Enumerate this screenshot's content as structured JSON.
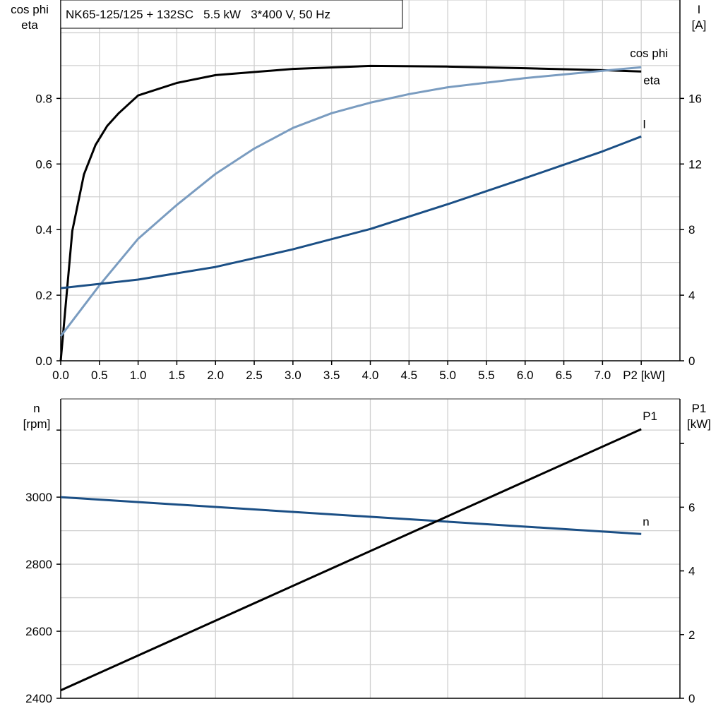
{
  "title": "NK65-125/125 + 132SC   5.5 kW   3*400 V, 50 Hz",
  "colors": {
    "eta": "#000000",
    "cos_phi": "#7a9cc0",
    "I": "#1b4f85",
    "n": "#1b4f85",
    "P1": "#000000",
    "grid": "#d0d0d0"
  },
  "chart_data": [
    {
      "type": "line",
      "ylabel_left": [
        "cos phi",
        "eta"
      ],
      "ylabel_right": [
        "I",
        "[A]"
      ],
      "xlabel": "P2 [kW]",
      "xlim": [
        0,
        8.0
      ],
      "ylim_left": [
        0,
        1.1
      ],
      "ylim_right": [
        0,
        22
      ],
      "x_ticks": [
        "0.0",
        "0.5",
        "1.0",
        "1.5",
        "2.0",
        "2.5",
        "3.0",
        "3.5",
        "4.0",
        "4.5",
        "5.0",
        "5.5",
        "6.0",
        "6.5",
        "7.0"
      ],
      "y_ticks_left": [
        "0.0",
        "0.2",
        "0.4",
        "0.6",
        "0.8"
      ],
      "y_ticks_right": [
        "0",
        "4",
        "8",
        "12",
        "16"
      ],
      "grid": true,
      "series": [
        {
          "name": "eta",
          "axis": "left",
          "color_key": "eta",
          "x": [
            0,
            0.15,
            0.3,
            0.45,
            0.6,
            0.75,
            1.0,
            1.5,
            2.0,
            3.0,
            4.0,
            5.0,
            6.0,
            7.0,
            7.5
          ],
          "y": [
            0,
            0.396,
            0.568,
            0.658,
            0.716,
            0.755,
            0.809,
            0.847,
            0.871,
            0.89,
            0.899,
            0.897,
            0.892,
            0.886,
            0.882
          ]
        },
        {
          "name": "cos phi",
          "axis": "left",
          "color_key": "cos_phi",
          "x": [
            0,
            0.5,
            1.0,
            1.5,
            2.0,
            2.5,
            3.0,
            3.5,
            4.0,
            4.5,
            5.0,
            6.0,
            7.0,
            7.5
          ],
          "y": [
            0.075,
            0.23,
            0.372,
            0.475,
            0.57,
            0.647,
            0.71,
            0.755,
            0.787,
            0.813,
            0.834,
            0.862,
            0.884,
            0.895
          ]
        },
        {
          "name": "I",
          "axis": "right",
          "color_key": "I",
          "x": [
            0,
            1.0,
            2.0,
            3.0,
            4.0,
            5.0,
            6.0,
            7.0,
            7.5
          ],
          "y": [
            4.43,
            4.95,
            5.72,
            6.8,
            8.04,
            9.55,
            11.14,
            12.77,
            13.68
          ]
        }
      ]
    },
    {
      "type": "line",
      "ylabel_left": [
        "n",
        "[rpm]"
      ],
      "ylabel_right": [
        "P1",
        "[kW]"
      ],
      "xlim": [
        0,
        8.0
      ],
      "ylim_left": [
        2400,
        3293
      ],
      "ylim_right": [
        0,
        9.4
      ],
      "y_ticks_left": [
        "2400",
        "2600",
        "2800",
        "3000",
        ""
      ],
      "y_ticks_right": [
        "0",
        "2",
        "4",
        "6",
        ""
      ],
      "grid": true,
      "series": [
        {
          "name": "n",
          "axis": "left",
          "color_key": "n",
          "x": [
            0,
            7.5
          ],
          "y": [
            3000,
            2890
          ]
        },
        {
          "name": "P1",
          "axis": "right",
          "color_key": "P1",
          "x": [
            0,
            7.5
          ],
          "y": [
            0.25,
            8.45
          ]
        }
      ]
    }
  ]
}
